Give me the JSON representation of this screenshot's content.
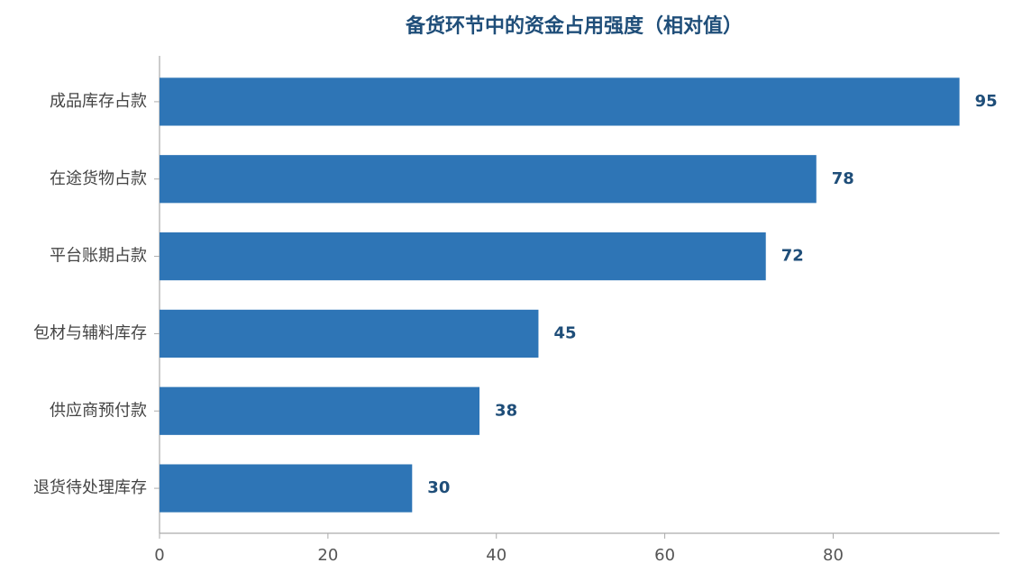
{
  "chart_data": {
    "type": "bar",
    "title": "备货环节中的资金占用强度（相对值）",
    "categories": [
      "成品库存占款",
      "在途货物占款",
      "平台账期占款",
      "包材与辅料库存",
      "供应商预付款",
      "退货待处理库存"
    ],
    "values": [
      95,
      78,
      72,
      45,
      38,
      30
    ],
    "color": "#2e75b6",
    "xlim": [
      0,
      99.75
    ],
    "xticks": [
      0,
      20,
      40,
      60,
      80
    ],
    "grid": false
  }
}
